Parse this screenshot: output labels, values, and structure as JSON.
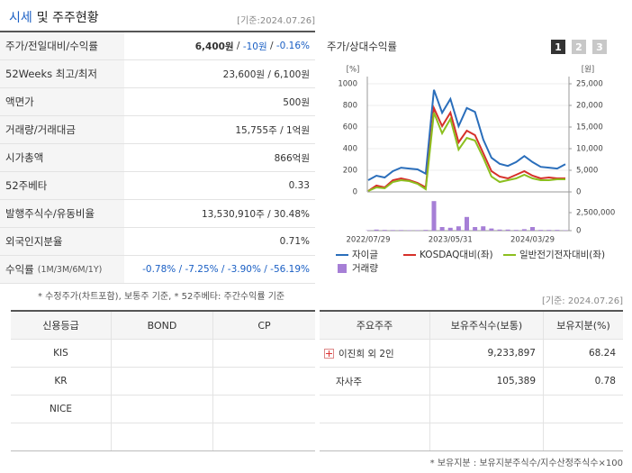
{
  "summary": {
    "title_highlight": "시세",
    "title_rest": "및 주주현황",
    "date": "[기준:2024.07.26]",
    "rows": [
      {
        "label": "주가/전일대비/수익률",
        "value": [
          {
            "text": "6,400원",
            "bold": true
          },
          {
            "text": " / "
          },
          {
            "text": "-10원",
            "color": "#1a5fc4"
          },
          {
            "text": " / "
          },
          {
            "text": "-0.16%",
            "color": "#1a5fc4"
          }
        ]
      },
      {
        "label": "52Weeks 최고/최저",
        "value": [
          {
            "text": "23,600원 / 6,100원"
          }
        ]
      },
      {
        "label": "액면가",
        "value": [
          {
            "text": "500원"
          }
        ]
      },
      {
        "label": "거래량/거래대금",
        "value": [
          {
            "text": "15,755주 / 1억원"
          }
        ]
      },
      {
        "label": "시가총액",
        "value": [
          {
            "text": "866억원"
          }
        ]
      },
      {
        "label": "52주베타",
        "value": [
          {
            "text": "0.33"
          }
        ]
      },
      {
        "label": "발행주식수/유동비율",
        "value": [
          {
            "text": "13,530,910주 / 30.48%"
          }
        ]
      },
      {
        "label": "외국인지분율",
        "value": [
          {
            "text": "0.71%"
          }
        ]
      },
      {
        "label": "수익률",
        "sublabel": "(1M/3M/6M/1Y)",
        "value": [
          {
            "text": "-0.78% / -7.25% / -3.90% / -56.19%",
            "color": "#1a5fc4"
          }
        ]
      }
    ],
    "note": "* 수정주가(차트포함), 보통주 기준, * 52주베타: 주간수익률 기준"
  },
  "chart_tabs": [
    "1",
    "2",
    "3"
  ],
  "chart_data": {
    "type": "line",
    "title": "주가/상대수익률",
    "ylabel": "[%]",
    "y2label": "[원]",
    "categories": [
      "2022/07/29",
      null,
      null,
      null,
      null,
      null,
      null,
      null,
      null,
      null,
      "2023/05/31",
      null,
      null,
      null,
      null,
      null,
      null,
      null,
      null,
      null,
      "2024/03/29",
      null,
      null,
      null,
      null
    ],
    "ylim": [
      0,
      1000
    ],
    "yticks": [
      0,
      200,
      400,
      600,
      800,
      1000
    ],
    "y2lim": [
      0,
      25000
    ],
    "y2ticks": [
      0,
      {
        "value": 5000,
        "label": "5,000"
      },
      {
        "value": 10000,
        "label": "10,000"
      },
      {
        "value": 15000,
        "label": "15,000"
      },
      {
        "value": 20000,
        "label": "20,000"
      },
      {
        "value": 25000,
        "label": "25,000"
      }
    ],
    "volume_ylim": [
      0,
      4250000
    ],
    "volume_yticks": [
      0,
      {
        "value": 2500000,
        "label": "2,500,000"
      }
    ],
    "grid": true,
    "series": [
      {
        "name": "자이글",
        "color": "#2a6ebb",
        "axis": "y2",
        "values": [
          2700,
          3750,
          3330,
          4800,
          5600,
          5400,
          5200,
          4200,
          23600,
          18300,
          21500,
          15200,
          19400,
          18500,
          12100,
          7900,
          6500,
          6000,
          6900,
          8300,
          6900,
          5800,
          5600,
          5400,
          6400
        ]
      },
      {
        "name": "KOSDAQ대비(좌)",
        "color": "#d6302a",
        "values": [
          8,
          58,
          42,
          108,
          125,
          108,
          83,
          42,
          775,
          608,
          733,
          458,
          567,
          525,
          358,
          192,
          142,
          125,
          158,
          192,
          150,
          125,
          133,
          125,
          125
        ]
      },
      {
        "name": "일반전기전자대비(좌)",
        "color": "#8cbf1f",
        "values": [
          8,
          42,
          33,
          92,
          108,
          100,
          75,
          25,
          733,
          542,
          675,
          392,
          500,
          475,
          317,
          142,
          92,
          108,
          125,
          158,
          125,
          108,
          108,
          117,
          117
        ]
      },
      {
        "name": "거래량",
        "color": "#a67fd6",
        "type": "bar",
        "axis": "volume",
        "values": [
          50000,
          150000,
          100000,
          80000,
          80000,
          60000,
          60000,
          100000,
          4100000,
          500000,
          400000,
          600000,
          1900000,
          500000,
          600000,
          300000,
          150000,
          150000,
          100000,
          200000,
          500000,
          100000,
          100000,
          100000,
          50000
        ]
      }
    ]
  },
  "rating": {
    "headers": [
      "신용등급",
      "BOND",
      "CP"
    ],
    "rows": [
      [
        "KIS"
      ],
      [
        "KR"
      ],
      [
        "NICE"
      ]
    ]
  },
  "holders": {
    "date": "[기준: 2024.07.26]",
    "headers": [
      "주요주주",
      "보유주식수(보통)",
      "보유지분(%)"
    ],
    "rows": [
      [
        "이진희 외 2인",
        "9,233,897",
        "68.24"
      ],
      [
        "자사주",
        "105,389",
        "0.78"
      ]
    ],
    "note": "* 보유지분 : 보유지분주식수/지수산정주식수×100"
  }
}
